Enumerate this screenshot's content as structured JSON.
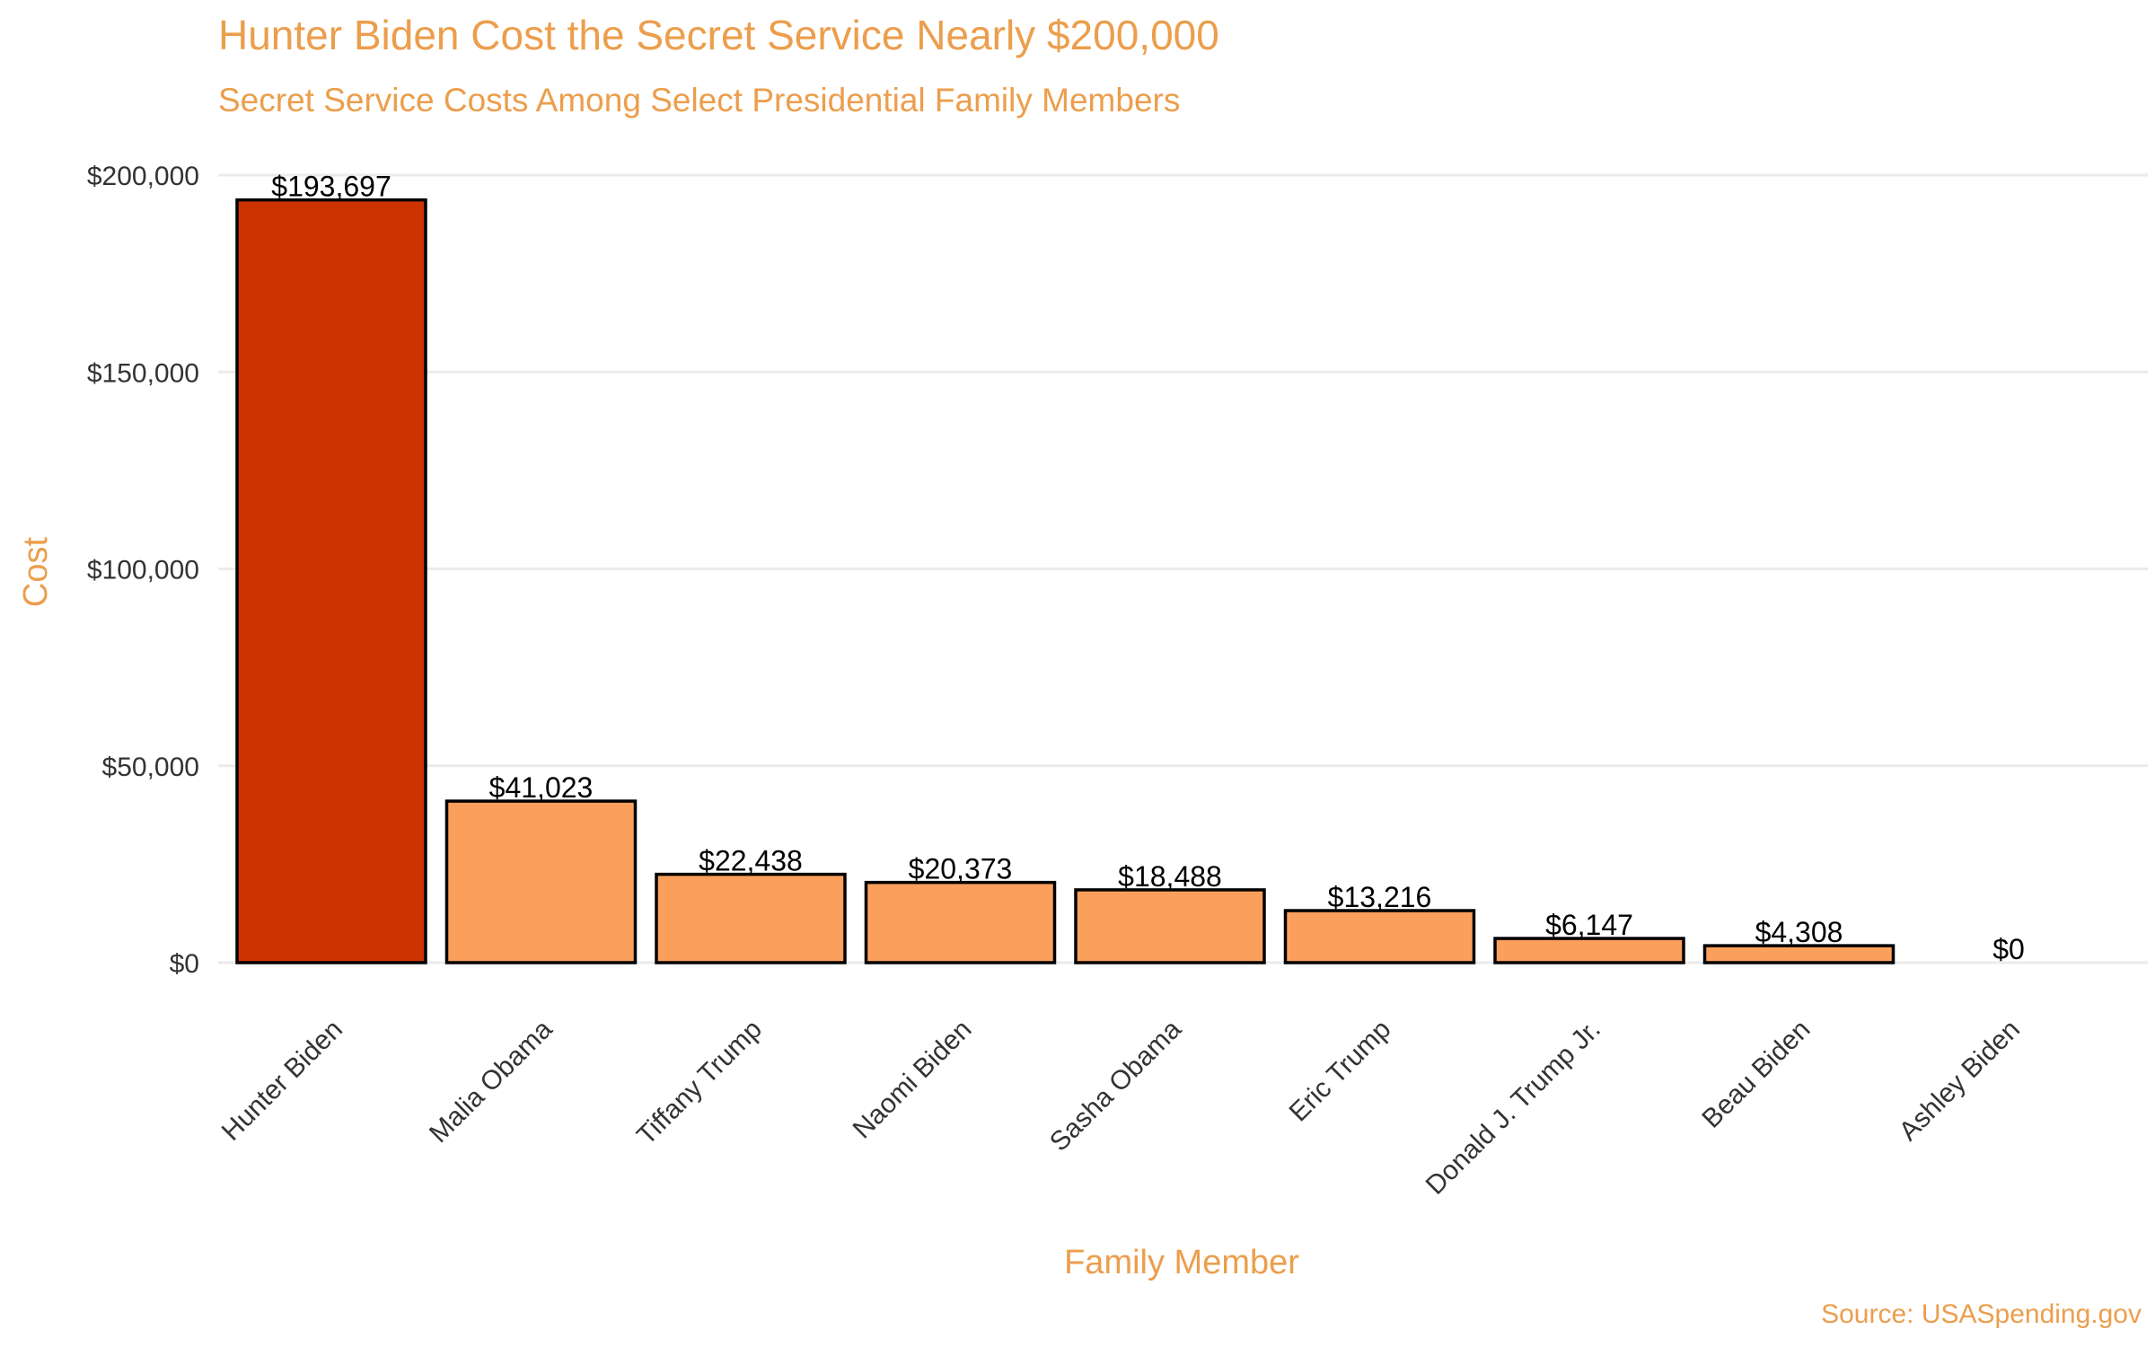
{
  "chart_data": {
    "type": "bar",
    "title": "Hunter Biden Cost the Secret Service Nearly $200,000",
    "subtitle": "Secret Service Costs Among Select Presidential Family Members",
    "xlabel": "Family Member",
    "ylabel": "Cost",
    "caption": "Source: USASpending.gov",
    "categories": [
      "Hunter Biden",
      "Malia Obama",
      "Tiffany Trump",
      "Naomi Biden",
      "Sasha Obama",
      "Eric Trump",
      "Donald J. Trump Jr.",
      "Beau Biden",
      "Ashley Biden"
    ],
    "values": [
      193697,
      41023,
      22438,
      20373,
      18488,
      13216,
      6147,
      4308,
      0
    ],
    "value_labels": [
      "$193,697",
      "$41,023",
      "$22,438",
      "$20,373",
      "$18,488",
      "$13,216",
      "$6,147",
      "$4,308",
      "$0"
    ],
    "yticks": [
      0,
      50000,
      100000,
      150000,
      200000
    ],
    "ytick_labels": [
      "$0",
      "$50,000",
      "$100,000",
      "$150,000",
      "$200,000"
    ],
    "ylim": [
      0,
      200000
    ],
    "grid": true,
    "legend": "none",
    "colors": {
      "highlight_bar": "#CC3300",
      "bar": "#FBA05C",
      "bar_outline": "#000000",
      "title": "#EC9E4C",
      "axis_text": "#333333",
      "grid": "#EBEBEB"
    }
  }
}
